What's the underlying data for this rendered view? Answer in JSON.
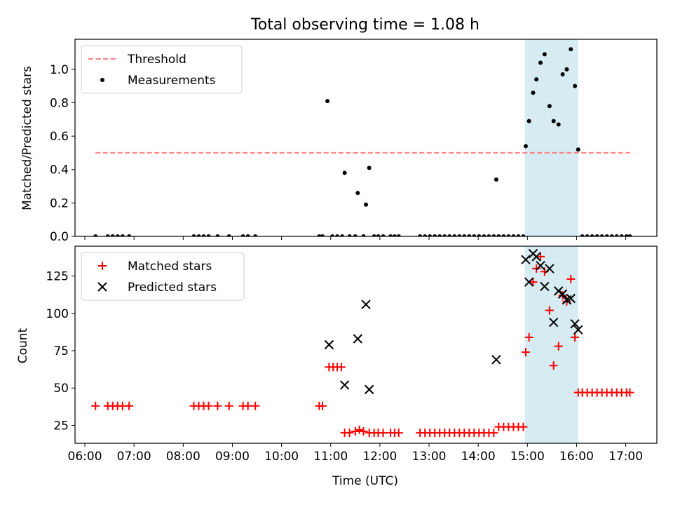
{
  "chart_data": [
    {
      "type": "scatter",
      "title": "Total observing time = 1.08 h",
      "xlabel": "",
      "ylabel": "Matched/Predicted stars",
      "xlim": [
        "05:48",
        "17:38"
      ],
      "ylim": [
        0,
        1.18
      ],
      "yticks": [
        "0.0",
        "0.2",
        "0.4",
        "0.6",
        "0.8",
        "1.0"
      ],
      "highlight_span": [
        "14:57",
        "16:02"
      ],
      "legend": {
        "placement": "upper-left",
        "entries": [
          "Threshold",
          "Measurements"
        ]
      },
      "threshold": {
        "name": "Threshold",
        "y": 0.5,
        "x_start": "06:13",
        "x_end": "17:05",
        "color": "#ff7f7f"
      },
      "series": [
        {
          "name": "Measurements",
          "color": "#000000",
          "points": [
            [
              "06:13",
              0
            ],
            [
              "06:28",
              0
            ],
            [
              "06:34",
              0
            ],
            [
              "06:40",
              0
            ],
            [
              "06:46",
              0
            ],
            [
              "06:54",
              0
            ],
            [
              "08:13",
              0
            ],
            [
              "08:19",
              0
            ],
            [
              "08:25",
              0
            ],
            [
              "08:31",
              0
            ],
            [
              "08:42",
              0
            ],
            [
              "08:56",
              0
            ],
            [
              "09:13",
              0
            ],
            [
              "09:19",
              0
            ],
            [
              "09:28",
              0
            ],
            [
              "10:46",
              0
            ],
            [
              "10:50",
              0
            ],
            [
              "10:56",
              0.81
            ],
            [
              "11:02",
              0
            ],
            [
              "11:08",
              0
            ],
            [
              "11:14",
              0
            ],
            [
              "11:17",
              0.38
            ],
            [
              "11:23",
              0
            ],
            [
              "11:30",
              0
            ],
            [
              "11:33",
              0.26
            ],
            [
              "11:40",
              0
            ],
            [
              "11:43",
              0.19
            ],
            [
              "11:47",
              0.41
            ],
            [
              "11:53",
              0
            ],
            [
              "11:58",
              0
            ],
            [
              "12:04",
              0
            ],
            [
              "12:13",
              0
            ],
            [
              "12:18",
              0
            ],
            [
              "12:23",
              0
            ],
            [
              "12:49",
              0
            ],
            [
              "12:55",
              0
            ],
            [
              "13:01",
              0
            ],
            [
              "13:07",
              0
            ],
            [
              "13:13",
              0
            ],
            [
              "13:19",
              0
            ],
            [
              "13:25",
              0
            ],
            [
              "13:31",
              0
            ],
            [
              "13:37",
              0
            ],
            [
              "13:43",
              0
            ],
            [
              "13:49",
              0
            ],
            [
              "13:55",
              0
            ],
            [
              "14:01",
              0
            ],
            [
              "14:07",
              0
            ],
            [
              "14:13",
              0
            ],
            [
              "14:19",
              0
            ],
            [
              "14:22",
              0.34
            ],
            [
              "14:25",
              0
            ],
            [
              "14:31",
              0
            ],
            [
              "14:37",
              0
            ],
            [
              "14:43",
              0
            ],
            [
              "14:49",
              0
            ],
            [
              "14:55",
              0
            ],
            [
              "14:58",
              0.54
            ],
            [
              "15:02",
              0.69
            ],
            [
              "15:07",
              0.86
            ],
            [
              "15:11",
              0.94
            ],
            [
              "15:16",
              1.04
            ],
            [
              "15:21",
              1.09
            ],
            [
              "15:27",
              0.78
            ],
            [
              "15:32",
              0.69
            ],
            [
              "15:38",
              0.67
            ],
            [
              "15:43",
              0.97
            ],
            [
              "15:48",
              1.0
            ],
            [
              "15:53",
              1.12
            ],
            [
              "15:58",
              0.9
            ],
            [
              "16:02",
              0.52
            ],
            [
              "16:07",
              0
            ],
            [
              "16:13",
              0
            ],
            [
              "16:19",
              0
            ],
            [
              "16:25",
              0
            ],
            [
              "16:31",
              0
            ],
            [
              "16:37",
              0
            ],
            [
              "16:43",
              0
            ],
            [
              "16:49",
              0
            ],
            [
              "16:55",
              0
            ],
            [
              "17:01",
              0
            ],
            [
              "17:05",
              0
            ]
          ]
        }
      ]
    },
    {
      "type": "scatter",
      "title": "",
      "xlabel": "Time (UTC)",
      "ylabel": "Count",
      "xlim": [
        "05:48",
        "17:38"
      ],
      "ylim": [
        13,
        145
      ],
      "yticks": [
        "25",
        "50",
        "75",
        "100",
        "125"
      ],
      "xticks": [
        "06:00",
        "07:00",
        "08:00",
        "09:00",
        "10:00",
        "11:00",
        "12:00",
        "13:00",
        "14:00",
        "15:00",
        "16:00",
        "17:00"
      ],
      "highlight_span": [
        "14:57",
        "16:02"
      ],
      "legend": {
        "placement": "upper-left",
        "entries": [
          "Matched stars",
          "Predicted stars"
        ]
      },
      "series": [
        {
          "name": "Matched stars",
          "marker": "plus",
          "color": "#ff0000",
          "points": [
            [
              "06:13",
              38
            ],
            [
              "06:28",
              38
            ],
            [
              "06:34",
              38
            ],
            [
              "06:40",
              38
            ],
            [
              "06:46",
              38
            ],
            [
              "06:54",
              38
            ],
            [
              "08:13",
              38
            ],
            [
              "08:19",
              38
            ],
            [
              "08:25",
              38
            ],
            [
              "08:31",
              38
            ],
            [
              "08:42",
              38
            ],
            [
              "08:56",
              38
            ],
            [
              "09:13",
              38
            ],
            [
              "09:19",
              38
            ],
            [
              "09:28",
              38
            ],
            [
              "10:46",
              38
            ],
            [
              "10:50",
              38
            ],
            [
              "10:58",
              64
            ],
            [
              "11:03",
              64
            ],
            [
              "11:08",
              64
            ],
            [
              "11:13",
              64
            ],
            [
              "11:17",
              20
            ],
            [
              "11:23",
              20
            ],
            [
              "11:30",
              21
            ],
            [
              "11:35",
              22
            ],
            [
              "11:40",
              21
            ],
            [
              "11:47",
              20
            ],
            [
              "11:53",
              20
            ],
            [
              "11:58",
              20
            ],
            [
              "12:04",
              20
            ],
            [
              "12:13",
              20
            ],
            [
              "12:18",
              20
            ],
            [
              "12:23",
              20
            ],
            [
              "12:49",
              20
            ],
            [
              "12:55",
              20
            ],
            [
              "13:01",
              20
            ],
            [
              "13:07",
              20
            ],
            [
              "13:13",
              20
            ],
            [
              "13:19",
              20
            ],
            [
              "13:25",
              20
            ],
            [
              "13:31",
              20
            ],
            [
              "13:37",
              20
            ],
            [
              "13:43",
              20
            ],
            [
              "13:49",
              20
            ],
            [
              "13:55",
              20
            ],
            [
              "14:01",
              20
            ],
            [
              "14:07",
              20
            ],
            [
              "14:13",
              20
            ],
            [
              "14:19",
              20
            ],
            [
              "14:25",
              24
            ],
            [
              "14:31",
              24
            ],
            [
              "14:37",
              24
            ],
            [
              "14:43",
              24
            ],
            [
              "14:49",
              24
            ],
            [
              "14:55",
              24
            ],
            [
              "14:58",
              74
            ],
            [
              "15:02",
              84
            ],
            [
              "15:07",
              121
            ],
            [
              "15:11",
              130
            ],
            [
              "15:16",
              138
            ],
            [
              "15:21",
              128
            ],
            [
              "15:27",
              102
            ],
            [
              "15:32",
              65
            ],
            [
              "15:38",
              78
            ],
            [
              "15:43",
              112
            ],
            [
              "15:48",
              108
            ],
            [
              "15:53",
              123
            ],
            [
              "15:58",
              84
            ],
            [
              "16:02",
              47
            ],
            [
              "16:07",
              47
            ],
            [
              "16:13",
              47
            ],
            [
              "16:19",
              47
            ],
            [
              "16:25",
              47
            ],
            [
              "16:31",
              47
            ],
            [
              "16:37",
              47
            ],
            [
              "16:43",
              47
            ],
            [
              "16:49",
              47
            ],
            [
              "16:55",
              47
            ],
            [
              "17:01",
              47
            ],
            [
              "17:05",
              47
            ]
          ]
        },
        {
          "name": "Predicted stars",
          "marker": "x",
          "color": "#000000",
          "points": [
            [
              "10:58",
              79
            ],
            [
              "11:17",
              52
            ],
            [
              "11:33",
              83
            ],
            [
              "11:43",
              106
            ],
            [
              "11:47",
              49
            ],
            [
              "14:22",
              69
            ],
            [
              "14:58",
              136
            ],
            [
              "15:02",
              121
            ],
            [
              "15:07",
              140
            ],
            [
              "15:11",
              138
            ],
            [
              "15:16",
              132
            ],
            [
              "15:21",
              118
            ],
            [
              "15:27",
              130
            ],
            [
              "15:32",
              94
            ],
            [
              "15:38",
              115
            ],
            [
              "15:43",
              113
            ],
            [
              "15:48",
              109
            ],
            [
              "15:53",
              110
            ],
            [
              "15:58",
              93
            ],
            [
              "16:02",
              89
            ]
          ]
        }
      ]
    }
  ],
  "colors": {
    "span_fill": "#add8e6",
    "threshold": "#ff7f7f",
    "matched": "#ff0000",
    "predicted": "#000000",
    "measurements": "#000000"
  }
}
